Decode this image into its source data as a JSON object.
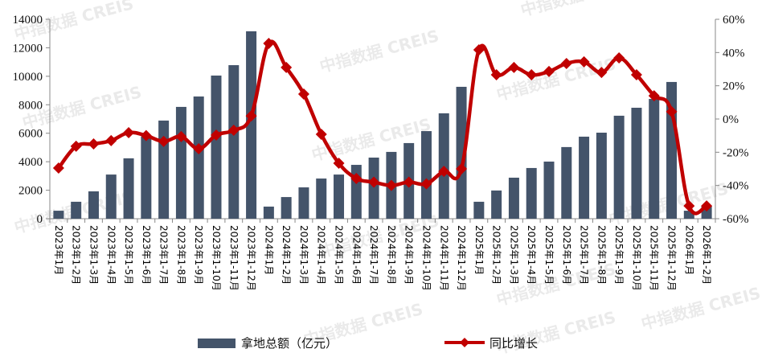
{
  "chart_data": {
    "type": "bar+line",
    "title": "",
    "categories": [
      "2023年1月",
      "2023年1-2月",
      "2023年1-3月",
      "2023年1-4月",
      "2023年1-5月",
      "2023年1-6月",
      "2023年1-7月",
      "2023年1-8月",
      "2023年1-9月",
      "2023年1-10月",
      "2023年1-11月",
      "2023年1-12月",
      "2024年1月",
      "2024年1-2月",
      "2024年1-3月",
      "2024年1-4月",
      "2024年1-5月",
      "2024年1-6月",
      "2024年1-7月",
      "2024年1-8月",
      "2024年1-9月",
      "2024年1-10月",
      "2024年1-11月",
      "2024年1-12月",
      "2025年1月",
      "2025年1-2月",
      "2025年1-3月",
      "2025年1-4月",
      "2025年1-5月",
      "2025年1-6月",
      "2025年1-7月",
      "2025年1-8月",
      "2025年1-9月",
      "2025年1-10月",
      "2025年1-11月",
      "2025年1-12月",
      "2026年1月",
      "2026年1-2月"
    ],
    "series": [
      {
        "name": "拿地总额（亿元）",
        "type": "bar",
        "axis": "left",
        "color": "#44546a",
        "values": [
          560,
          1190,
          1920,
          3100,
          4240,
          5760,
          6890,
          7850,
          8580,
          10050,
          10780,
          13160,
          850,
          1520,
          2200,
          2820,
          3100,
          3780,
          4290,
          4690,
          5310,
          6150,
          7400,
          9260,
          1190,
          1980,
          2880,
          3560,
          4010,
          5030,
          5760,
          6040,
          7230,
          7790,
          8410,
          9600,
          560,
          880
        ]
      },
      {
        "name": "同比增长",
        "type": "line",
        "axis": "right",
        "unit": "%",
        "color": "#c00000",
        "values": [
          -29.5,
          -16.4,
          -15.0,
          -13.0,
          -8.2,
          -10.0,
          -13.5,
          -10.6,
          -17.9,
          -9.7,
          -6.8,
          1.9,
          45.5,
          31.0,
          15.0,
          -9.2,
          -26.6,
          -35.8,
          -38.0,
          -40.0,
          -38.0,
          -39.0,
          -31.5,
          -30.0,
          41.6,
          26.6,
          31.0,
          26.6,
          28.6,
          33.4,
          34.4,
          28.0,
          36.8,
          26.6,
          14.0,
          4.4,
          -52.3,
          -52.3
        ]
      }
    ],
    "y_left": {
      "min": 0,
      "max": 14000,
      "step": 2000,
      "ticks": [
        "0",
        "2000",
        "4000",
        "6000",
        "8000",
        "10000",
        "12000",
        "14000"
      ]
    },
    "y_right": {
      "min": -60,
      "max": 60,
      "step": 20,
      "ticks": [
        "-60%",
        "-40%",
        "-20%",
        "0%",
        "20%",
        "40%",
        "60%"
      ]
    },
    "xlabel": "",
    "ylabel": "",
    "grid": false,
    "legend_position": "bottom"
  },
  "legend": {
    "bar_label": "拿地总额（亿元）",
    "line_label": "同比增长"
  },
  "watermark": {
    "text_cn": "中指数据",
    "text_en": "CREIS"
  }
}
